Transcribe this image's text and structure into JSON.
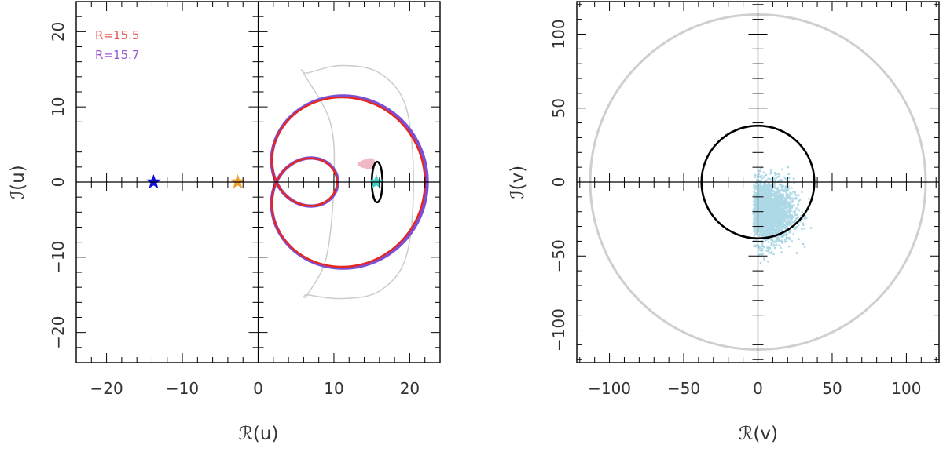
{
  "chart_data": [
    {
      "type": "line",
      "xlabel": "ℛ(u)",
      "ylabel": "ℐ(u)",
      "xlim": [
        -24,
        24
      ],
      "ylim": [
        -24,
        24
      ],
      "xticks": [
        -20,
        -10,
        0,
        10,
        20
      ],
      "xtick_labels": [
        "−20",
        "−10",
        "0",
        "10",
        "20"
      ],
      "yticks": [
        -20,
        -10,
        0,
        10,
        20
      ],
      "ytick_labels": [
        "−20",
        "−10",
        "0",
        "10",
        "20"
      ],
      "legend": {
        "placement": "top-left",
        "entries": [
          {
            "label": "R=15.5",
            "color": "#e8544c"
          },
          {
            "label": "R=15.7",
            "color": "#9b59d0"
          }
        ]
      },
      "series": [
        {
          "name": "R=15.7",
          "kind": "limacon",
          "a": 5.9,
          "b": 14.0,
          "color": "#7b4fd6"
        },
        {
          "name": "R=15.5",
          "kind": "limacon",
          "a": 5.8,
          "b": 13.8,
          "color": "#e8261e"
        }
      ],
      "shapes": [
        {
          "kind": "crescent",
          "color": "#cccccc",
          "outer_points": [
            [
              6.5,
              14.5
            ],
            [
              11,
              15.5
            ],
            [
              16,
              14.5
            ],
            [
              19.5,
              10
            ],
            [
              20.5,
              0
            ],
            [
              19.5,
              -10
            ],
            [
              16,
              -14.5
            ],
            [
              11,
              -15.5
            ],
            [
              6.5,
              -15
            ]
          ],
          "inner_points": [
            [
              6.5,
              -15
            ],
            [
              9,
              -10
            ],
            [
              10,
              0
            ],
            [
              9.5,
              8
            ],
            [
              6,
              14.5
            ]
          ]
        },
        {
          "kind": "ellipse",
          "cx": 15.7,
          "cy": 0,
          "rx": 0.7,
          "ry": 2.7,
          "color": "#000000"
        },
        {
          "kind": "blob",
          "color": "#f0b8c4",
          "points": [
            [
              13.2,
              2.5
            ],
            [
              14.5,
              3.1
            ],
            [
              15.3,
              2.9
            ],
            [
              15.1,
              1.8
            ],
            [
              14.0,
              1.9
            ],
            [
              13.3,
              2.2
            ]
          ]
        }
      ],
      "markers": [
        {
          "x": -13.8,
          "y": 0,
          "shape": "star",
          "color": "#1010dd"
        },
        {
          "x": -2.7,
          "y": 0,
          "shape": "star",
          "color": "#f0a030"
        },
        {
          "x": 15.6,
          "y": 0,
          "shape": "star",
          "color": "#46d0cc"
        }
      ]
    },
    {
      "type": "scatter",
      "xlabel": "ℛ(v)",
      "ylabel": "ℐ(v)",
      "xlim": [
        -122,
        122
      ],
      "ylim": [
        -122,
        122
      ],
      "xticks": [
        -100,
        -50,
        0,
        50,
        100
      ],
      "xtick_labels": [
        "−100",
        "−50",
        "0",
        "50",
        "100"
      ],
      "yticks": [
        -100,
        -50,
        0,
        50,
        100
      ],
      "ytick_labels": [
        "−100",
        "−50",
        "0",
        "50",
        "100"
      ],
      "circles": [
        {
          "r": 113,
          "color": "#cfcfcf"
        },
        {
          "r": 38,
          "color": "#000000"
        }
      ],
      "scatter_cloud": {
        "color": "#add8e6",
        "center": [
          6,
          -20
        ],
        "spread": [
          9,
          11
        ],
        "x_range": [
          -3,
          38
        ],
        "y_range": [
          -55,
          12
        ],
        "count": 2500
      }
    }
  ]
}
